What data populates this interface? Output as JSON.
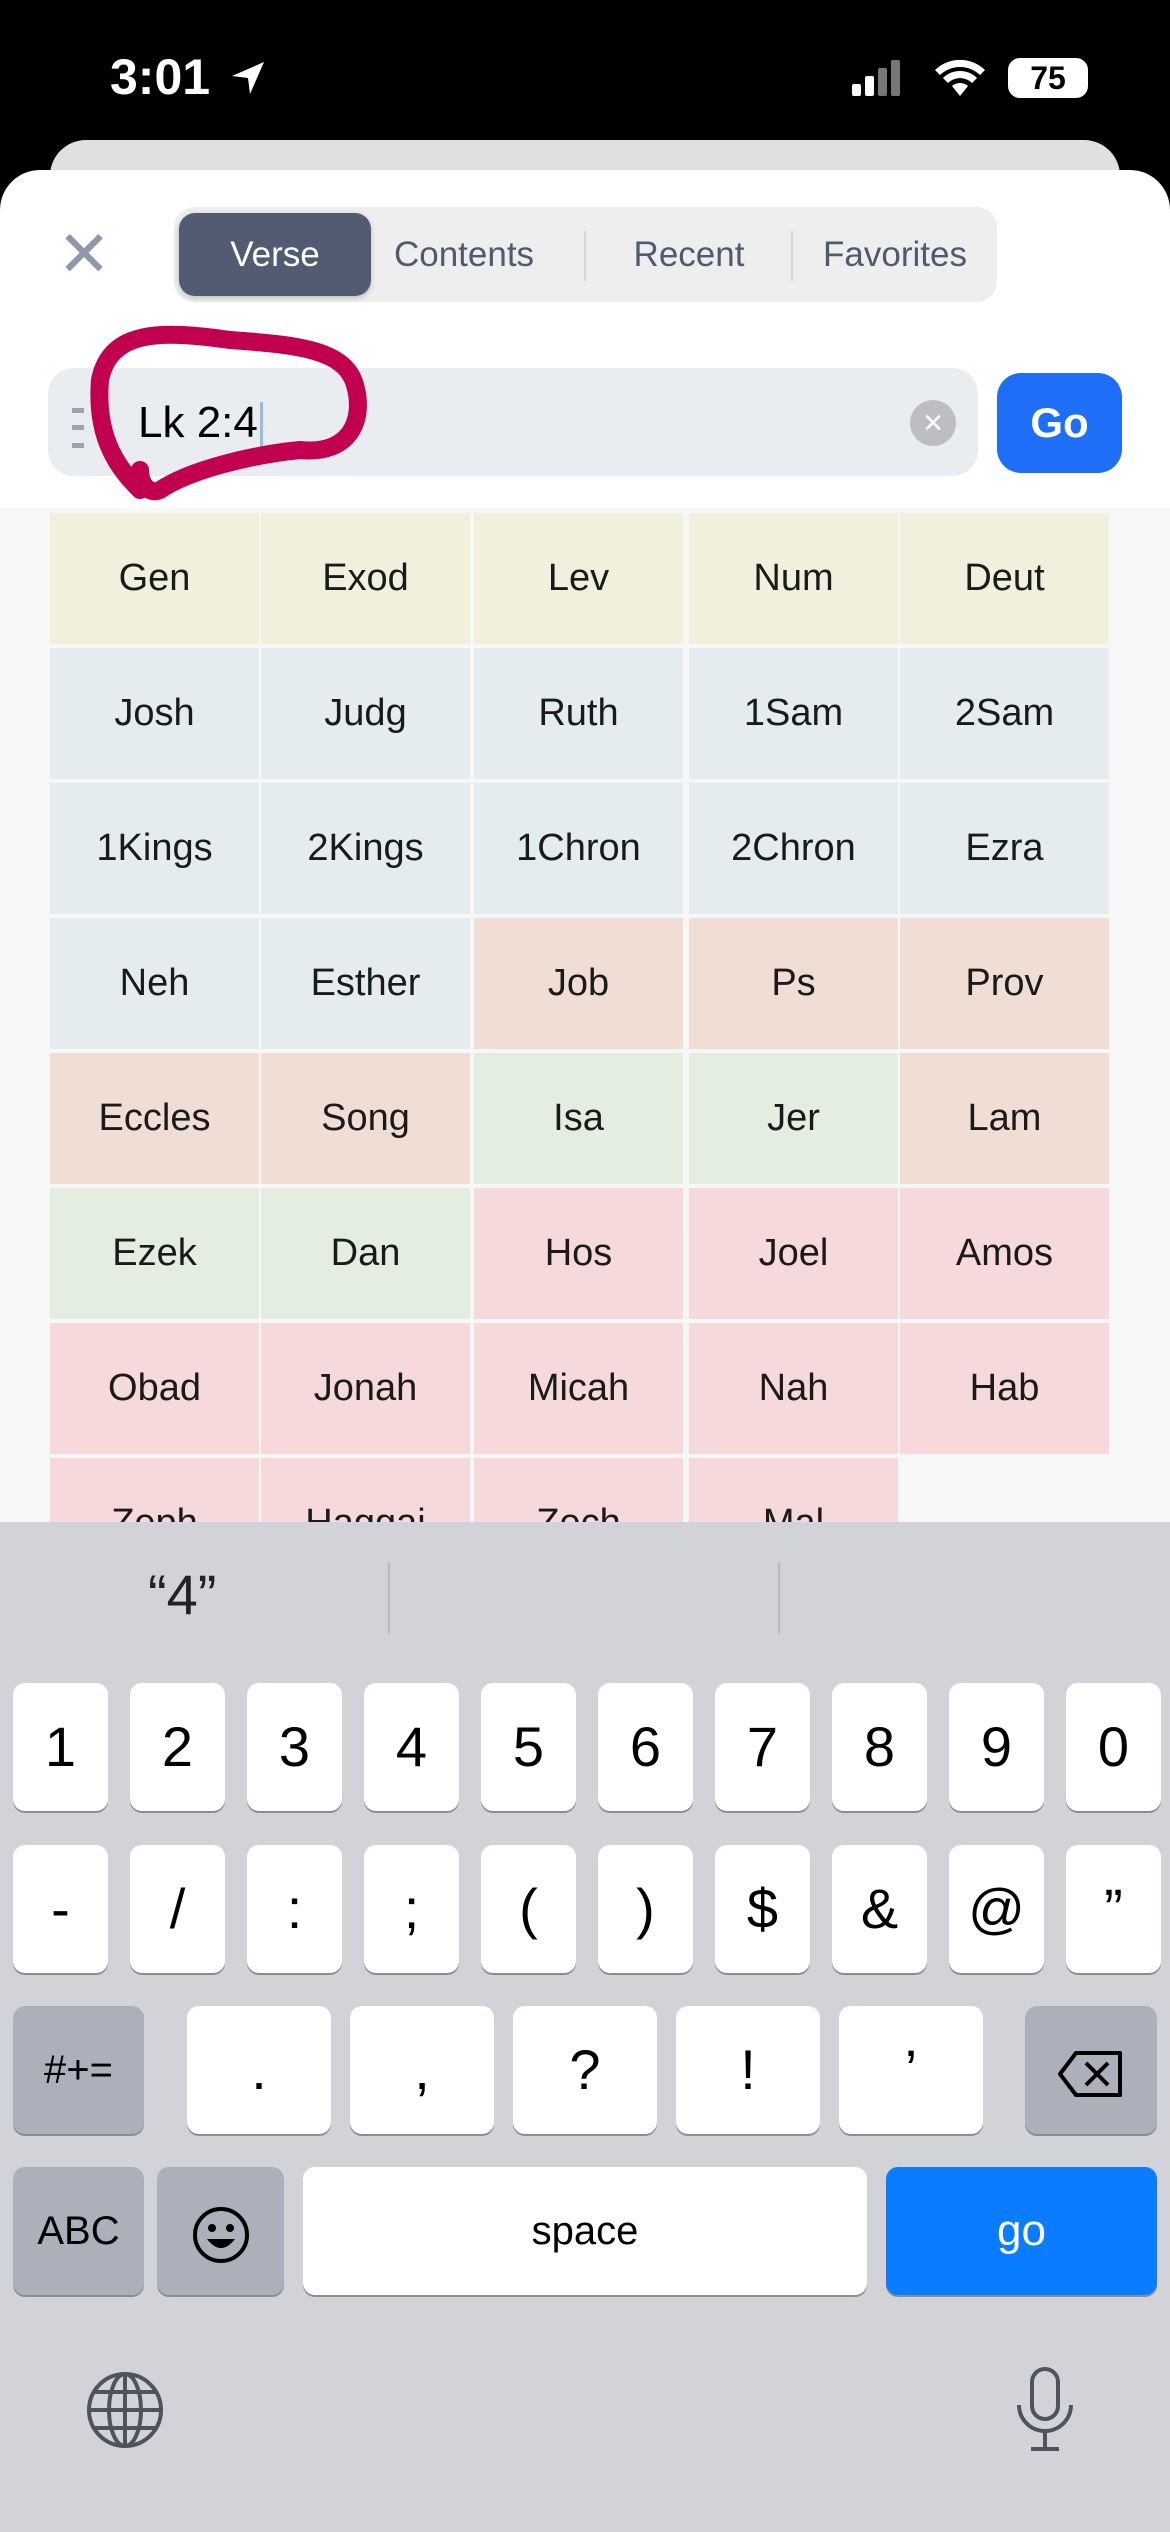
{
  "status_bar": {
    "time": "3:01",
    "battery": "75",
    "icons": [
      "location-arrow-icon",
      "cellular-signal-icon",
      "wifi-icon",
      "battery-icon"
    ]
  },
  "header": {
    "close_icon": "close-icon",
    "tabs": [
      {
        "label": "Verse",
        "selected": true
      },
      {
        "label": "Contents"
      },
      {
        "label": "Recent"
      },
      {
        "label": "Favorites"
      }
    ]
  },
  "search": {
    "value": "Lk 2:4",
    "go_label": "Go",
    "clear_icon": "clear-circle-icon",
    "annotation_color": "#c20050"
  },
  "books": [
    {
      "label": "Gen",
      "color": "#f0f0dc"
    },
    {
      "label": "Exod",
      "color": "#f0f0dc"
    },
    {
      "label": "Lev",
      "color": "#f0f0dc"
    },
    {
      "label": "Num",
      "color": "#f0f0dc"
    },
    {
      "label": "Deut",
      "color": "#f0f0dc"
    },
    {
      "label": "Josh",
      "color": "#e4ecef"
    },
    {
      "label": "Judg",
      "color": "#e4ecef"
    },
    {
      "label": "Ruth",
      "color": "#e4ecef"
    },
    {
      "label": "1Sam",
      "color": "#e4ecef"
    },
    {
      "label": "2Sam",
      "color": "#e4ecef"
    },
    {
      "label": "1Kings",
      "color": "#e4ecef"
    },
    {
      "label": "2Kings",
      "color": "#e4ecef"
    },
    {
      "label": "1Chron",
      "color": "#e4ecef"
    },
    {
      "label": "2Chron",
      "color": "#e4ecef"
    },
    {
      "label": "Ezra",
      "color": "#e4ecef"
    },
    {
      "label": "Neh",
      "color": "#e4ecef"
    },
    {
      "label": "Esther",
      "color": "#e4ecef"
    },
    {
      "label": "Job",
      "color": "#f0ded5"
    },
    {
      "label": "Ps",
      "color": "#f0ded5"
    },
    {
      "label": "Prov",
      "color": "#f0ded5"
    },
    {
      "label": "Eccles",
      "color": "#f0ded5"
    },
    {
      "label": "Song",
      "color": "#f0ded5"
    },
    {
      "label": "Isa",
      "color": "#e3eee1"
    },
    {
      "label": "Jer",
      "color": "#e3eee1"
    },
    {
      "label": "Lam",
      "color": "#f0ded5"
    },
    {
      "label": "Ezek",
      "color": "#e3eee1"
    },
    {
      "label": "Dan",
      "color": "#e3eee1"
    },
    {
      "label": "Hos",
      "color": "#f5d9db"
    },
    {
      "label": "Joel",
      "color": "#f5d9db"
    },
    {
      "label": "Amos",
      "color": "#f5d9db"
    },
    {
      "label": "Obad",
      "color": "#f5d9db"
    },
    {
      "label": "Jonah",
      "color": "#f5d9db"
    },
    {
      "label": "Micah",
      "color": "#f5d9db"
    },
    {
      "label": "Nah",
      "color": "#f5d9db"
    },
    {
      "label": "Hab",
      "color": "#f5d9db"
    },
    {
      "label": "Zeph",
      "color": "#f5d9db"
    },
    {
      "label": "Haggai",
      "color": "#f5d9db"
    },
    {
      "label": "Zech",
      "color": "#f5d9db"
    },
    {
      "label": "Mal",
      "color": "#f5d9db"
    }
  ],
  "keyboard": {
    "suggestions": [
      "“4”",
      "",
      ""
    ],
    "row1": [
      "1",
      "2",
      "3",
      "4",
      "5",
      "6",
      "7",
      "8",
      "9",
      "0"
    ],
    "row2": [
      "-",
      "/",
      ":",
      ";",
      "(",
      ")",
      "$",
      "&",
      "@",
      "”"
    ],
    "row3": {
      "mode": "#+=",
      "keys": [
        ".",
        ",",
        "?",
        "!",
        "’"
      ],
      "delete_icon": "backspace-icon"
    },
    "row4": {
      "abc": "ABC",
      "emoji_icon": "emoji-icon",
      "space": "space",
      "go": "go"
    },
    "globe_icon": "globe-icon",
    "mic_icon": "microphone-icon"
  }
}
